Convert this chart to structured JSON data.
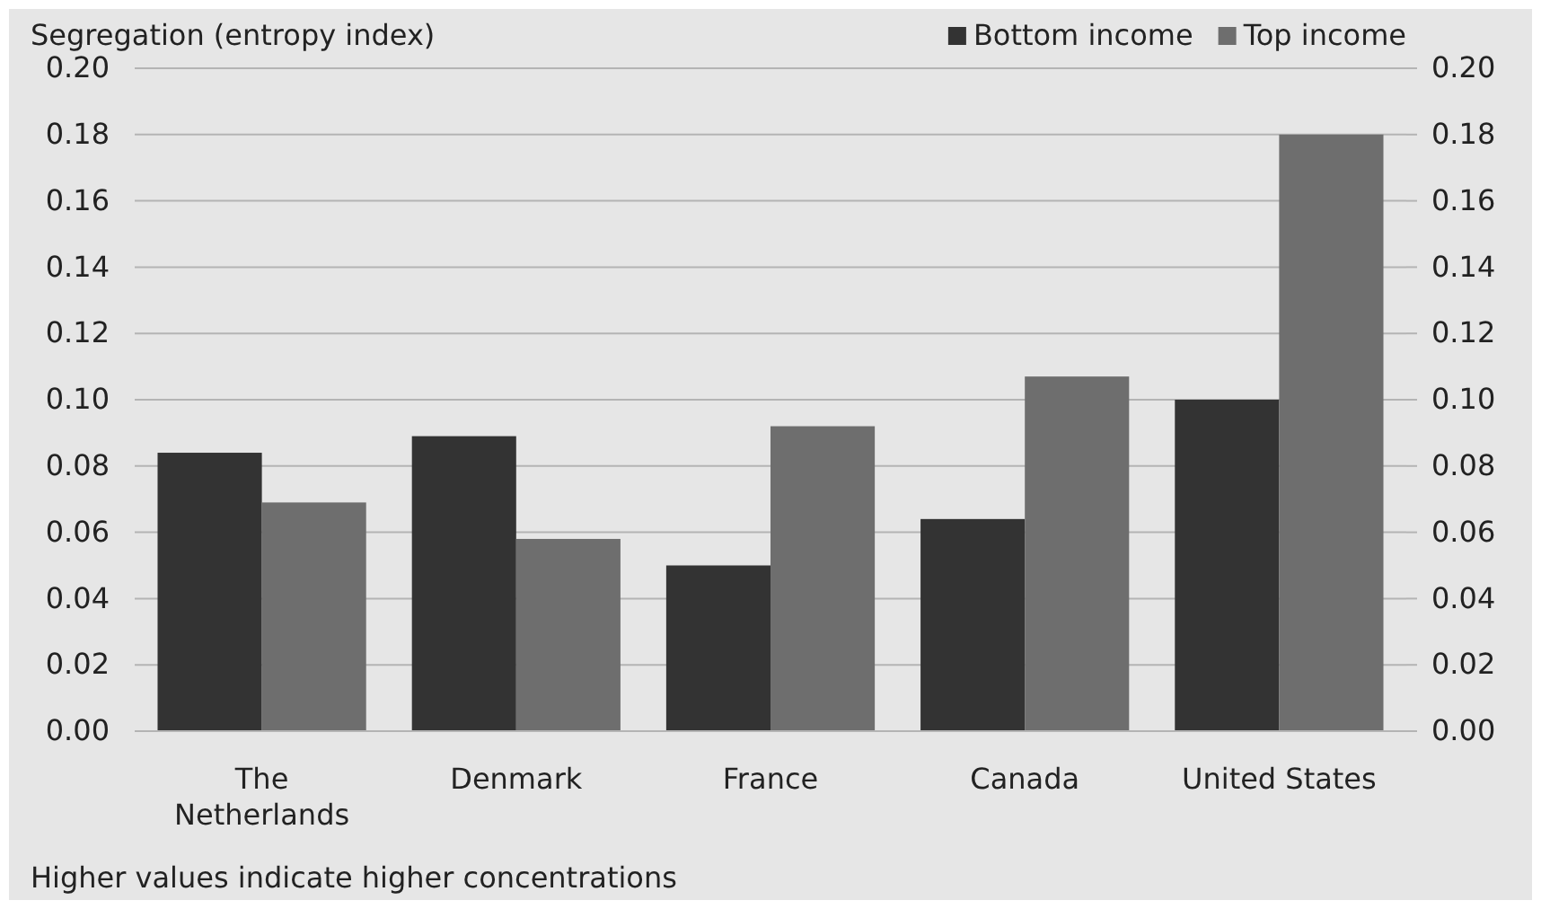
{
  "chart_data": {
    "type": "bar",
    "ylabel": "Segregation (entropy index)",
    "categories": [
      "The Netherlands",
      "Denmark",
      "France",
      "Canada",
      "United States"
    ],
    "series": [
      {
        "name": "Bottom income",
        "color": "#333333",
        "values": [
          0.084,
          0.089,
          0.05,
          0.064,
          0.1
        ]
      },
      {
        "name": "Top income",
        "color": "#6e6e6e",
        "values": [
          0.069,
          0.058,
          0.092,
          0.107,
          0.18
        ]
      }
    ],
    "ylim": [
      0,
      0.2
    ],
    "yticks": [
      {
        "value": 0,
        "label": "0.00"
      },
      {
        "value": 0.02,
        "label": "0.02"
      },
      {
        "value": 0.04,
        "label": "0.04"
      },
      {
        "value": 0.06,
        "label": "0.06"
      },
      {
        "value": 0.08,
        "label": "0.08"
      },
      {
        "value": 0.1,
        "label": "0.10"
      },
      {
        "value": 0.12,
        "label": "0.12"
      },
      {
        "value": 0.14,
        "label": "0.14"
      },
      {
        "value": 0.16,
        "label": "0.16"
      },
      {
        "value": 0.18,
        "label": "0.18"
      },
      {
        "value": 0.2,
        "label": "0.20"
      }
    ],
    "y2lim": [
      0,
      0.2
    ],
    "y2ticks": [
      {
        "value": 0,
        "label": "0.00"
      },
      {
        "value": 0.02,
        "label": "0.02"
      },
      {
        "value": 0.04,
        "label": "0.04"
      },
      {
        "value": 0.06,
        "label": "0.06"
      },
      {
        "value": 0.08,
        "label": "0.08"
      },
      {
        "value": 0.1,
        "label": "0.10"
      },
      {
        "value": 0.12,
        "label": "0.12"
      },
      {
        "value": 0.14,
        "label": "0.14"
      },
      {
        "value": 0.16,
        "label": "0.16"
      },
      {
        "value": 0.18,
        "label": "0.18"
      },
      {
        "value": 0.2,
        "label": "0.20"
      }
    ],
    "grid": "y",
    "legend": "top right",
    "annotations": [
      "Higher values indicate higher concentrations"
    ]
  }
}
